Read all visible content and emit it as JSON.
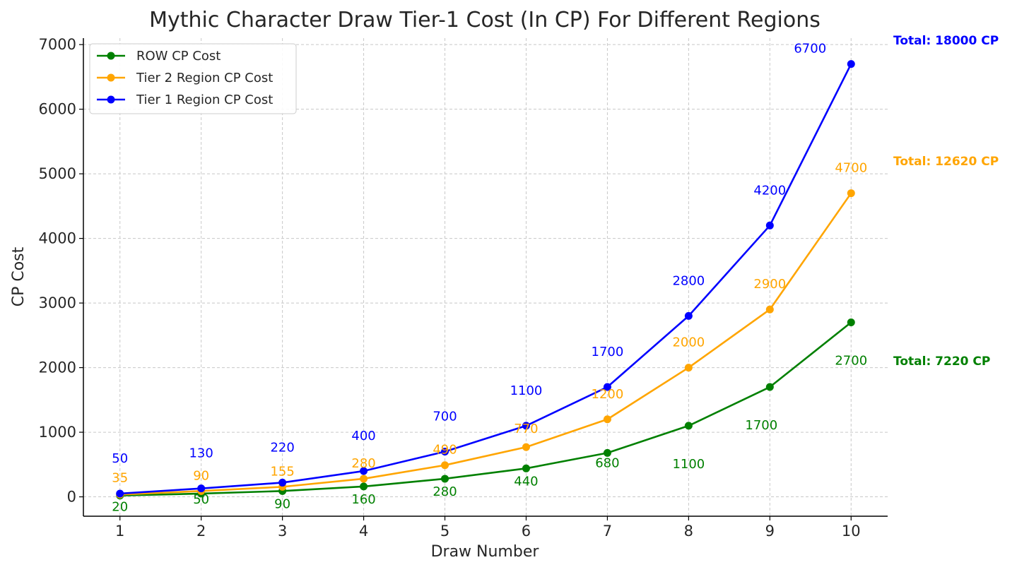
{
  "chart_data": {
    "type": "line",
    "title": "Mythic Character Draw Tier-1 Cost (In CP) For Different Regions",
    "xlabel": "Draw Number",
    "ylabel": "CP Cost",
    "x": [
      1,
      2,
      3,
      4,
      5,
      6,
      7,
      8,
      9,
      10
    ],
    "xlim": [
      0.55,
      10.45
    ],
    "ylim": [
      -300,
      7100
    ],
    "yticks": [
      0,
      1000,
      2000,
      3000,
      4000,
      5000,
      6000,
      7000
    ],
    "grid": true,
    "legend_position": "top-left",
    "series": [
      {
        "name": "ROW CP Cost",
        "color": "#008000",
        "values": [
          20,
          50,
          90,
          160,
          280,
          440,
          680,
          1100,
          1700,
          2700
        ],
        "label_placement": "below",
        "total_label": "Total: 7220 CP"
      },
      {
        "name": "Tier 2 Region CP Cost",
        "color": "#FFA500",
        "values": [
          35,
          90,
          155,
          280,
          490,
          770,
          1200,
          2000,
          2900,
          4700
        ],
        "label_placement": "above",
        "total_label": "Total: 12620 CP"
      },
      {
        "name": "Tier 1 Region CP Cost",
        "color": "#0000FF",
        "values": [
          50,
          130,
          220,
          400,
          700,
          1100,
          1700,
          2800,
          4200,
          6700
        ],
        "label_placement": "above",
        "total_label": "Total: 18000 CP"
      }
    ]
  }
}
